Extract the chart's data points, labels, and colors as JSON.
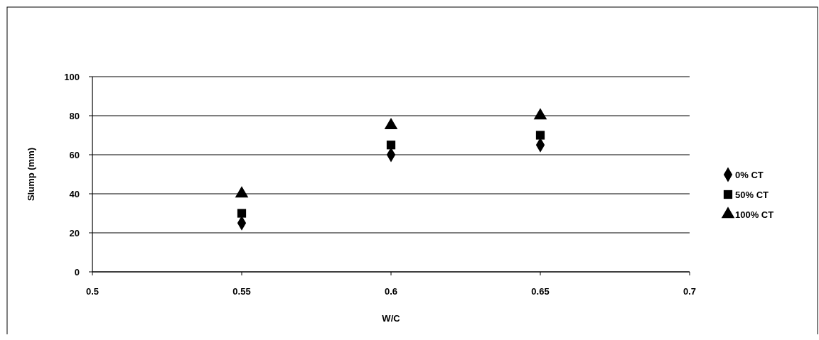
{
  "chart_data": {
    "type": "scatter",
    "xlabel": "W/C",
    "ylabel": "Slump (mm)",
    "x": [
      0.55,
      0.6,
      0.65
    ],
    "xlim": [
      0.5,
      0.7
    ],
    "xticks": [
      0.5,
      0.55,
      0.6,
      0.65,
      0.7
    ],
    "ylim": [
      0,
      100
    ],
    "yticks": [
      0,
      20,
      40,
      60,
      80,
      100
    ],
    "grid": "y",
    "legend": "right",
    "series": [
      {
        "name": "0% CT",
        "color": "#000000",
        "marker": "diamond",
        "values": [
          25,
          60,
          65
        ]
      },
      {
        "name": "50% CT",
        "color": "#000000",
        "marker": "square",
        "values": [
          30,
          65,
          70
        ]
      },
      {
        "name": "100% CT",
        "color": "#000000",
        "marker": "triangle",
        "values": [
          40,
          75,
          80
        ]
      }
    ]
  }
}
